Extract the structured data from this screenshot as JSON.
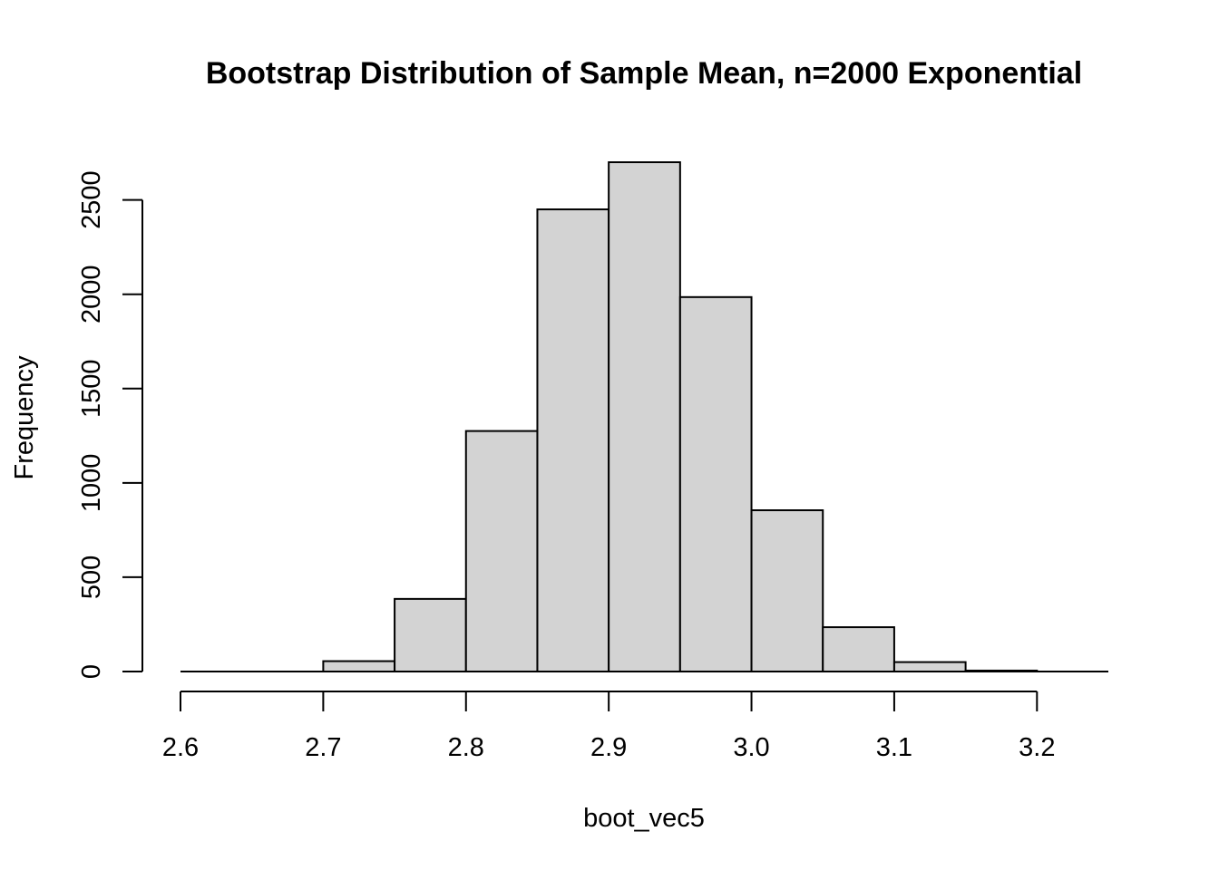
{
  "chart_data": {
    "type": "bar",
    "title": "Bootstrap Distribution of Sample Mean, n=2000 Exponential",
    "xlabel": "boot_vec5",
    "ylabel": "Frequency",
    "bin_edges": [
      2.6,
      2.65,
      2.7,
      2.75,
      2.8,
      2.85,
      2.9,
      2.95,
      3.0,
      3.05,
      3.1,
      3.15,
      3.2,
      3.25
    ],
    "values": [
      0,
      0,
      55,
      385,
      1275,
      2450,
      2700,
      1985,
      855,
      235,
      50,
      5,
      0
    ],
    "xlim": [
      2.6,
      3.25
    ],
    "ylim": [
      0,
      2700
    ],
    "x_ticks": [
      2.6,
      2.7,
      2.8,
      2.9,
      3.0,
      3.1,
      3.2
    ],
    "x_tick_labels": [
      "2.6",
      "2.7",
      "2.8",
      "2.9",
      "3.0",
      "3.1",
      "3.2"
    ],
    "y_ticks": [
      0,
      500,
      1000,
      1500,
      2000,
      2500
    ],
    "y_tick_labels": [
      "0",
      "500",
      "1000",
      "1500",
      "2000",
      "2500"
    ],
    "grid": false,
    "legend": "none",
    "bar_fill": "#d3d3d3",
    "bar_stroke": "#000000"
  }
}
